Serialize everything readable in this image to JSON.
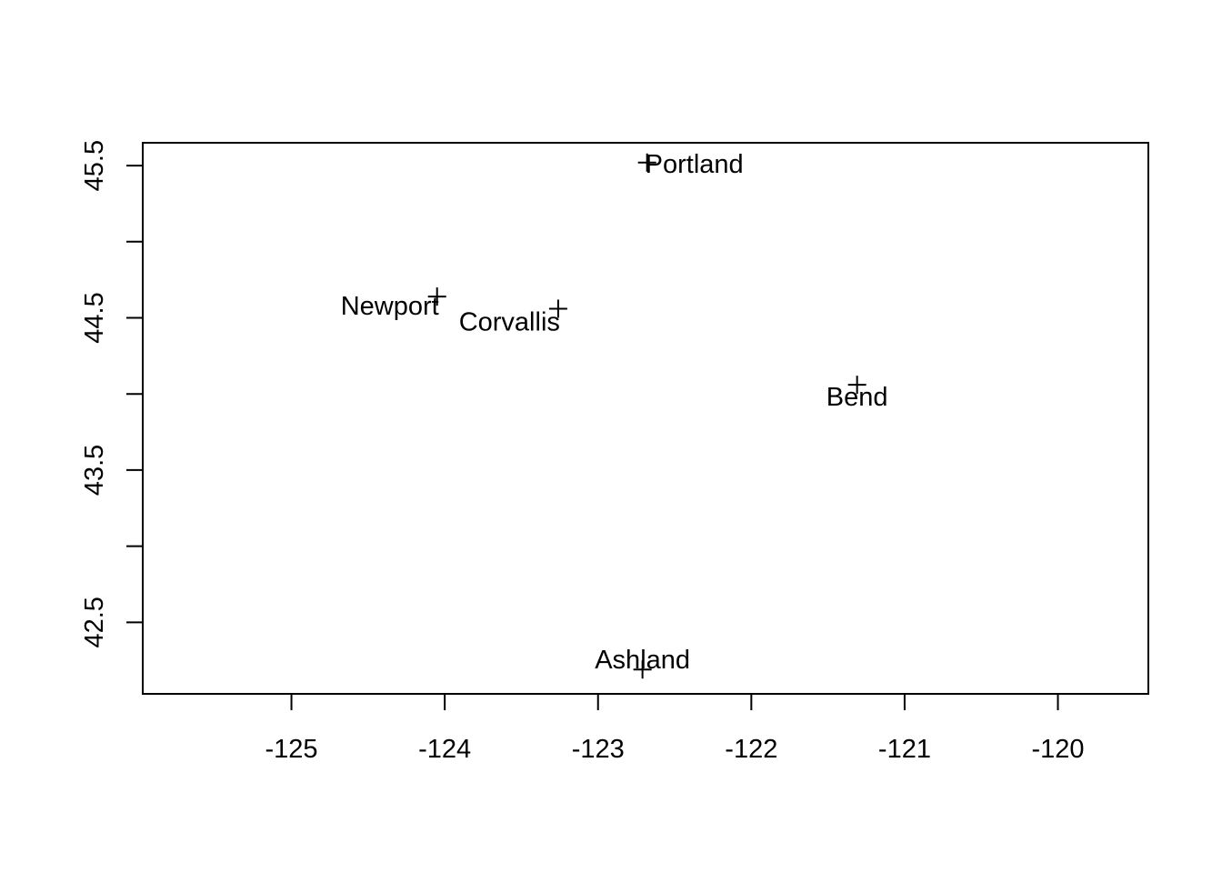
{
  "chart_data": {
    "type": "scatter",
    "title": "",
    "xlabel": "",
    "ylabel": "",
    "xlim": [
      -125.97,
      -119.41
    ],
    "ylim": [
      42.03,
      45.65
    ],
    "x_ticks": [
      -125,
      -124,
      -123,
      -122,
      -121,
      -120
    ],
    "x_tick_labels": [
      "-125",
      "-124",
      "-123",
      "-122",
      "-121",
      "-120"
    ],
    "y_ticks": [
      42.5,
      43,
      43.5,
      44,
      44.5,
      45,
      45.5
    ],
    "y_tick_labels": [
      "42.5",
      "",
      "43.5",
      "",
      "44.5",
      "",
      "45.5"
    ],
    "grid": false,
    "legend": "none",
    "point_shape": "plus",
    "points": [
      {
        "label": "Portland",
        "x": -122.68,
        "y": 45.52
      },
      {
        "label": "Newport",
        "x": -124.05,
        "y": 44.64
      },
      {
        "label": "Corvallis",
        "x": -123.26,
        "y": 44.56
      },
      {
        "label": "Bend",
        "x": -121.31,
        "y": 44.06
      },
      {
        "label": "Ashland",
        "x": -122.71,
        "y": 42.19
      }
    ]
  }
}
